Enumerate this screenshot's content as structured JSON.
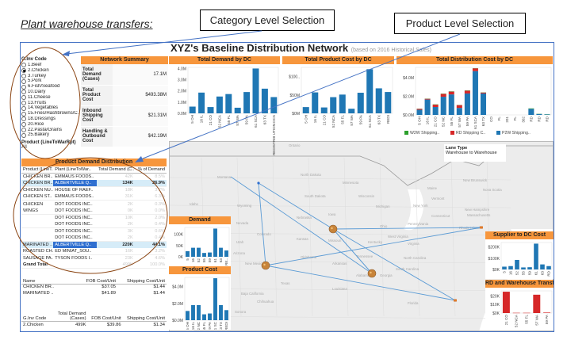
{
  "page_title": "Plant warehouse transfers:",
  "callouts": {
    "category": "Category Level Selection",
    "product": "Product Level Selection"
  },
  "dashboard": {
    "title": "XYZ's Baseline Distribution Network",
    "subtitle": "(based on 2016 Historical Sales)"
  },
  "filter": {
    "label": "G.Inv Code",
    "options": [
      {
        "label": "1.Beef",
        "selected": false
      },
      {
        "label": "2.Chicken",
        "selected": true
      },
      {
        "label": "3.Turkey",
        "selected": false
      },
      {
        "label": "5.Pork",
        "selected": false
      },
      {
        "label": "6.Fish/Seafood",
        "selected": false
      },
      {
        "label": "10.Dairy",
        "selected": false
      },
      {
        "label": "11.Cheese",
        "selected": false
      },
      {
        "label": "13.Fruits",
        "selected": false
      },
      {
        "label": "14.Vegetables",
        "selected": false
      },
      {
        "label": "15.Fries/Hashbrowns/C..",
        "selected": false
      },
      {
        "label": "18.Dressings",
        "selected": false
      },
      {
        "label": "20.Rice",
        "selected": false
      },
      {
        "label": "22.Pasta/Grains",
        "selected": false
      },
      {
        "label": "25.Bakery",
        "selected": false
      }
    ],
    "product_label": "Product (LineToWarRpt)",
    "product_value": "All"
  },
  "network_summary": {
    "header": "Network Summary",
    "rows": [
      {
        "label": "Total Demand (Cases)",
        "value": "17.1M"
      },
      {
        "label": "Total Product Cost",
        "value": "$493.38M"
      },
      {
        "label": "Inbound Shipping Cost",
        "value": "$21.31M"
      },
      {
        "label": "Handling & Outbound Cost",
        "value": "$42.19M"
      }
    ]
  },
  "product_demand": {
    "header": "Product Demand Distribution",
    "columns": [
      "Product (LineT..",
      "Plant (LineToWar..",
      "Total Demand (C..",
      "% of Demand"
    ],
    "rows": [
      {
        "product": "CHICKEN BR..",
        "plant": "EMMAUS FOODS..",
        "demand": "42K",
        "pct": "8.5%",
        "selected": false
      },
      {
        "product": "CHICKEN BR..",
        "plant": "ALBERTVILLE Q..",
        "demand": "134K",
        "pct": "26.9%",
        "selected": true
      },
      {
        "product": "CHICKEN NU..",
        "plant": "HOUSE OF RAEF..",
        "demand": "18K",
        "pct": "3.7%",
        "selected": false
      },
      {
        "product": "CHICKEN ST..",
        "plant": "EMMAUS FOODS..",
        "demand": "31K",
        "pct": "6.3%",
        "selected": false
      },
      {
        "product": "CHICKEN",
        "plant": "DOT FOODS INC..",
        "demand": "2K",
        "pct": "0.3%",
        "selected": false
      },
      {
        "product": "WINGS",
        "plant": "DOT FOODS INC..",
        "demand": "0K",
        "pct": "0.0%",
        "selected": false
      },
      {
        "product": "",
        "plant": "DOT FOODS INC..",
        "demand": "10K",
        "pct": "2.0%",
        "selected": false
      },
      {
        "product": "",
        "plant": "DOT FOODS INC..",
        "demand": "2K",
        "pct": "0.4%",
        "selected": false
      },
      {
        "product": "",
        "plant": "DOT FOODS INC..",
        "demand": "3K",
        "pct": "0.6%",
        "selected": false
      },
      {
        "product": "",
        "plant": "DOT FOODS INC..",
        "demand": "2K",
        "pct": "0.4%",
        "selected": false
      },
      {
        "product": "MARINATED ..",
        "plant": "ALBERTVILLE Q..",
        "demand": "220K",
        "pct": "44.1%",
        "selected": true
      },
      {
        "product": "ROASTED CH..",
        "plant": "ED MINIAT_SOU..",
        "demand": "16K",
        "pct": "3.2%",
        "selected": false
      },
      {
        "product": "SAUSAGE PA..",
        "plant": "TYSON FOODS I..",
        "demand": "23K",
        "pct": "4.6%",
        "selected": false
      }
    ],
    "grand_total": {
      "label": "Grand Total",
      "demand": "499K",
      "pct": "100.0%"
    }
  },
  "cost_table": {
    "columns": [
      "Name",
      "FOB Cost/Unit",
      "Shipping Cost/Unit"
    ],
    "rows": [
      {
        "name": "CHICKEN BR..",
        "fob": "$37.05",
        "ship": "$1.44"
      },
      {
        "name": "MARINATED ..",
        "fob": "$41.89",
        "ship": "$1.44"
      }
    ]
  },
  "summary_table": {
    "columns": [
      "G.Inv Code",
      "Total Demand (Cases)",
      "FOB Cost/Unit",
      "Shipping Cost/Unit"
    ],
    "rows": [
      {
        "code": "2.Chicken",
        "demand": "499K",
        "fob": "$39.86",
        "ship": "$1.34"
      }
    ]
  },
  "map": {
    "legend_title": "Lane Type",
    "legend_value": "Warehouse to Warehouse",
    "lane_color": "#5b9bd5",
    "labels": [
      "Ontario",
      "Montana",
      "North Dakota",
      "South Dakota",
      "Minnesota",
      "Wisconsin",
      "Michigan",
      "Wyoming",
      "Idaho",
      "Nebraska",
      "Iowa",
      "Nevada",
      "Utah",
      "Colorado",
      "Kansas",
      "Missouri",
      "Oklahoma",
      "Arkansas",
      "New Mexico",
      "Arizona",
      "Tennessee",
      "Kentucky",
      "Ohio",
      "Pennsylvania",
      "West Virginia",
      "Virginia",
      "North Carolina",
      "South Carolina",
      "Alabama",
      "Georgia",
      "Louisiana",
      "Texas",
      "New York",
      "Vermont",
      "Maine",
      "New Hampshire",
      "Massachusetts",
      "Connecticut",
      "Rhode Island",
      "New Brunswick",
      "Nova Scotia",
      "Baja California",
      "Sonora",
      "Chihuahua",
      "Florida"
    ]
  },
  "colors": {
    "accent": "#f7963c",
    "bar": "#1f77b4",
    "rd": "#d62728",
    "w2w": "#2ca02c",
    "frame": "#4472c4",
    "ellipse": "#8b4513"
  },
  "chart_data": [
    {
      "id": "demand_dc",
      "type": "bar",
      "title": "Total Demand by DC",
      "categories": [
        "5 OH",
        "16 IL",
        "21 CO",
        "52 NCA",
        "55 FL",
        "57 WA",
        "59 PA",
        "61 SCA",
        "63 TX",
        "REDISTRIB UTION DCS"
      ],
      "values": [
        0.6,
        1.85,
        0.56,
        1.5,
        1.72,
        0.5,
        1.9,
        4.0,
        2.2,
        1.45
      ],
      "yticks": [
        0,
        1,
        2,
        3,
        4
      ],
      "ytick_labels": [
        "0.0M",
        "1.0M",
        "2.0M",
        "3.0M",
        "4.0M"
      ],
      "ylim": [
        0,
        4.1
      ]
    },
    {
      "id": "product_cost_dc",
      "type": "bar",
      "title": "Total Product Cost by DC",
      "categories": [
        "5 OH",
        "16 IL",
        "21 CO",
        "52 NCA",
        "55 FL",
        "57 WA",
        "59 PA",
        "61 SCA",
        "63 TX",
        "REDI"
      ],
      "values": [
        17,
        57,
        16,
        44,
        51,
        12.5,
        56,
        120,
        68,
        58
      ],
      "yticks": [
        0,
        50,
        100
      ],
      "ytick_labels": [
        "$0M",
        "$50M",
        "$100.."
      ],
      "ylim": [
        0,
        125
      ]
    },
    {
      "id": "dist_cost_dc",
      "type": "bar",
      "stacked": true,
      "title": "Total Distribution Cost by DC",
      "categories": [
        "5 OH",
        "16 IL",
        "21 CO",
        "52 NC",
        "55 FL",
        "57 WA",
        "59 PA",
        "61 SCA",
        "63 TX",
        "CO",
        "FL",
        "201",
        "FL",
        "302",
        "RD",
        "RD",
        "RD"
      ],
      "series": [
        {
          "name": "P2W Shipping..",
          "color": "#1f77b4",
          "values": [
            0.55,
            1.65,
            0.85,
            1.95,
            2.2,
            0.75,
            2.3,
            4.7,
            2.3,
            0,
            0,
            0,
            0,
            0,
            0.65,
            0.1,
            0.05
          ]
        },
        {
          "name": "RD Shipping C..",
          "color": "#d62728",
          "values": [
            0.1,
            0.08,
            0.25,
            0.3,
            0.3,
            0.3,
            0.3,
            0.3,
            0.1,
            0,
            0,
            0,
            0,
            0,
            0,
            0,
            0
          ]
        },
        {
          "name": "W2W Shipping..",
          "color": "#2ca02c",
          "values": [
            0.02,
            0.02,
            0.03,
            0.03,
            0.03,
            0.02,
            0.03,
            0.02,
            0.02,
            0,
            0,
            0,
            0,
            0,
            0.05,
            0.02,
            0.02
          ]
        }
      ],
      "legend": [
        "W2W Shipping..",
        "RD Shipping C..",
        "P2W Shipping.."
      ],
      "legend_placement": "bottom",
      "yticks": [
        0,
        2,
        4
      ],
      "ytick_labels": [
        "$0.0M",
        "$2.0M",
        "$4.0M"
      ],
      "ylim": [
        0,
        5.1
      ]
    },
    {
      "id": "demand_mini",
      "type": "bar",
      "title": "Demand",
      "categories": [
        "5",
        "16",
        "52",
        "55",
        "59",
        "61",
        "63",
        "RE.."
      ],
      "values": [
        25,
        40,
        40,
        17,
        19,
        125,
        40,
        28
      ],
      "yticks": [
        0,
        50,
        100
      ],
      "ytick_labels": [
        "0K",
        "50K",
        "100K"
      ],
      "ylim": [
        0,
        130
      ]
    },
    {
      "id": "product_cost_mini",
      "type": "bar",
      "title": "Product Cost",
      "categories": [
        "5 OH",
        "16 IL",
        "52 NC",
        "55 FL",
        "59 PA",
        "61 SC",
        "63 TX",
        "REDI"
      ],
      "values": [
        1.1,
        1.8,
        1.8,
        0.7,
        0.8,
        5.0,
        1.8,
        1.2
      ],
      "yticks": [
        0,
        2,
        4
      ],
      "ytick_labels": [
        "$0.0M",
        "$2.0M",
        "$4.0M"
      ],
      "ylim": [
        0,
        5.1
      ]
    },
    {
      "id": "supplier_dc",
      "type": "bar",
      "title": "Supplier to DC Cost",
      "categories": [
        "5",
        "16",
        "52",
        "55",
        "59",
        "61",
        "63",
        "RD"
      ],
      "values": [
        25,
        30,
        85,
        18,
        20,
        230,
        45,
        30
      ],
      "yticks": [
        0,
        100,
        200
      ],
      "ytick_labels": [
        "$0K",
        "$100K",
        "$200K"
      ],
      "ylim": [
        0,
        240
      ]
    },
    {
      "id": "rd_transfer",
      "type": "bar",
      "title": "RD and Warehouse Transfer",
      "categories": [
        "21 CO",
        "52 NCA",
        "55 FL",
        "57 WA",
        "59 PA"
      ],
      "values": [
        25,
        0.3,
        0.3,
        21.5,
        0.6
      ],
      "color": "#d62728",
      "yticks": [
        0,
        10,
        20
      ],
      "ytick_labels": [
        "$0K",
        "$10K",
        "$20K"
      ],
      "ylim": [
        0,
        26
      ]
    }
  ]
}
